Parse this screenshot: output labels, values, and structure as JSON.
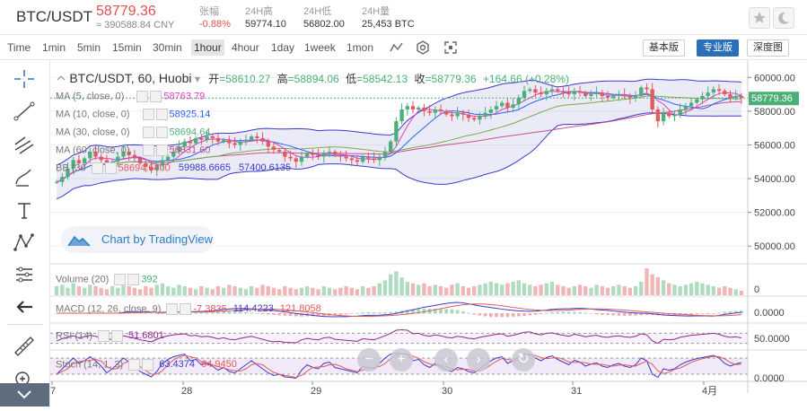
{
  "header": {
    "pair": "BTC/USDT",
    "price": "58779.36",
    "cny": "≈ 390588.84 CNY",
    "stats": [
      {
        "label": "张幅",
        "value": "-0.88%",
        "color": "#e24f4f"
      },
      {
        "label": "24H高",
        "value": "59774.10",
        "color": "#333"
      },
      {
        "label": "24H低",
        "value": "56802.00",
        "color": "#333"
      },
      {
        "label": "24H量",
        "value": "25,453 BTC",
        "color": "#333"
      }
    ]
  },
  "toolbar": {
    "timeframes": [
      "Time",
      "1min",
      "5min",
      "15min",
      "30min",
      "1hour",
      "4hour",
      "1day",
      "1week",
      "1mon"
    ],
    "active": "1hour",
    "views": [
      "基本版",
      "专业版",
      "深度图"
    ],
    "active_view": "专业版"
  },
  "legend": {
    "symbol": "BTC/USDT, 60, Huobi",
    "open_label": "开",
    "open": "=58610.27",
    "high_label": "高",
    "high": "=58894.06",
    "low_label": "低",
    "low": "=58542.13",
    "close_label": "收",
    "close": "=58779.36",
    "change": "+164.66 (+0.28%)",
    "ma5": "MA (5, close, 0)",
    "ma5v": "58763.79",
    "ma10": "MA (10, close, 0)",
    "ma10v": "58925.14",
    "ma30": "MA (30, close, 0)",
    "ma30v": "58694.64",
    "ma60": "MA (60, close, 0)",
    "ma60v": "56831.60",
    "bb": "BB (30",
    "bbv1": "58694.6400",
    "bbv2": "59988.6665",
    "bbv3": "57400.6135",
    "vol": "Volume (20)",
    "volv": "392",
    "macd": "MACD (12, 26, close, 9)",
    "macdv1": "-7.3835",
    "macdv2": "114.4223",
    "macdv3": "121.8058",
    "rsi": "RSI (14)",
    "rsiv": "51.6801",
    "stoch": "Stoch (14, 1, 3)",
    "stochv1": "63.4374",
    "stochv2": "64.9450"
  },
  "watermark": "Chart by TradingView",
  "colors": {
    "up": "#4caf78",
    "down": "#e25a5a",
    "ma5": "#e040c0",
    "ma10": "#2962ff",
    "ma30": "#8bc34a",
    "ma60": "#c8508a",
    "bb": "#3a3acd"
  },
  "chart_data": {
    "type": "candlestick",
    "price_axis_ticks": [
      "60000.00",
      "58000.00",
      "56000.00",
      "54000.00",
      "52000.00",
      "50000.00"
    ],
    "last_price_label": "58779.36",
    "ylim": [
      49000,
      60600
    ],
    "x_ticks": [
      "7",
      "28",
      "29",
      "30",
      "31",
      "4月"
    ],
    "volume_axis_tick": "0",
    "macd_axis_tick": "0.0000",
    "rsi_axis_tick": "50.0000",
    "stoch_axis_tick": "0.0000",
    "price_path": [
      53800,
      54100,
      54600,
      55100,
      54900,
      55200,
      55600,
      55300,
      55100,
      54800,
      55000,
      55300,
      55600,
      55400,
      55200,
      54900,
      54700,
      54500,
      54800,
      55100,
      55300,
      55600,
      55900,
      56200,
      56100,
      56400,
      56300,
      56500,
      56400,
      56200,
      56300,
      56100,
      56000,
      56200,
      56300,
      56500,
      56400,
      56200,
      55900,
      55700,
      55600,
      55300,
      55200,
      55000,
      55300,
      55500,
      55400,
      55300,
      55500,
      55600,
      55400,
      55300,
      55200,
      55100,
      55000,
      55300,
      55200,
      55100,
      55300,
      55600,
      56200,
      57400,
      58100,
      58300,
      58100,
      58200,
      58000,
      57900,
      58100,
      58000,
      57800,
      57700,
      57900,
      57800,
      57600,
      57500,
      57700,
      57900,
      58100,
      58300,
      58500,
      58200,
      58400,
      58800,
      59200,
      59300,
      59100,
      59000,
      59200,
      59300,
      59200,
      59100,
      59000,
      59200,
      59100,
      58900,
      59000,
      59100,
      58900,
      58800,
      58900,
      59000,
      58900,
      58800,
      58900,
      59400,
      59300,
      58100,
      57400,
      57900,
      57700,
      57800,
      58100,
      58300,
      58500,
      58700,
      58900,
      59100,
      59300,
      59200,
      59000,
      58800,
      58900,
      58779
    ],
    "volume": [
      6,
      7,
      5,
      8,
      6,
      5,
      7,
      6,
      5,
      4,
      6,
      5,
      7,
      6,
      5,
      4,
      6,
      5,
      7,
      8,
      6,
      5,
      7,
      6,
      5,
      4,
      6,
      5,
      4,
      6,
      5,
      7,
      6,
      5,
      4,
      6,
      5,
      7,
      6,
      5,
      4,
      6,
      5,
      4,
      5,
      6,
      5,
      4,
      6,
      5,
      4,
      5,
      6,
      5,
      4,
      6,
      5,
      6,
      8,
      10,
      14,
      16,
      12,
      9,
      8,
      7,
      8,
      6,
      7,
      6,
      5,
      7,
      8,
      6,
      5,
      6,
      7,
      8,
      9,
      8,
      7,
      8,
      9,
      10,
      8,
      7,
      6,
      7,
      8,
      9,
      7,
      6,
      5,
      6,
      7,
      6,
      5,
      7,
      6,
      5,
      6,
      7,
      6,
      5,
      6,
      9,
      18,
      14,
      12,
      10,
      8,
      7,
      6,
      7,
      8,
      9,
      8,
      7,
      6,
      5,
      6,
      5,
      4,
      3
    ],
    "rsi": [
      40,
      48,
      55,
      60,
      52,
      56,
      62,
      58,
      50,
      42,
      48,
      54,
      60,
      55,
      50,
      44,
      40,
      36,
      46,
      55,
      60,
      64,
      66,
      68,
      60,
      62,
      56,
      58,
      54,
      48,
      52,
      46,
      44,
      50,
      54,
      58,
      52,
      46,
      40,
      36,
      38,
      34,
      33,
      32,
      44,
      50,
      46,
      44,
      52,
      54,
      46,
      44,
      42,
      40,
      38,
      48,
      46,
      44,
      52,
      60,
      70,
      82,
      84,
      82,
      68,
      70,
      62,
      58,
      64,
      60,
      54,
      52,
      58,
      55,
      50,
      48,
      54,
      58,
      62,
      66,
      68,
      58,
      62,
      68,
      74,
      76,
      68,
      64,
      70,
      72,
      66,
      62,
      58,
      66,
      62,
      56,
      60,
      62,
      56,
      54,
      58,
      60,
      56,
      54,
      58,
      68,
      64,
      40,
      30,
      46,
      44,
      46,
      54,
      58,
      62,
      64,
      66,
      68,
      70,
      66,
      58,
      54,
      56,
      51.68
    ],
    "stoch": [
      20,
      40,
      60,
      80,
      60,
      70,
      85,
      70,
      50,
      25,
      40,
      60,
      80,
      65,
      50,
      30,
      20,
      10,
      30,
      60,
      75,
      85,
      90,
      95,
      70,
      75,
      55,
      60,
      50,
      35,
      45,
      30,
      25,
      40,
      55,
      70,
      55,
      40,
      25,
      15,
      20,
      10,
      8,
      5,
      35,
      55,
      45,
      40,
      60,
      65,
      45,
      40,
      35,
      30,
      25,
      50,
      45,
      40,
      60,
      80,
      95,
      98,
      96,
      94,
      70,
      75,
      55,
      45,
      60,
      50,
      35,
      30,
      45,
      40,
      30,
      25,
      40,
      55,
      70,
      80,
      85,
      60,
      70,
      85,
      94,
      95,
      80,
      70,
      82,
      88,
      75,
      65,
      55,
      72,
      65,
      50,
      58,
      62,
      50,
      45,
      55,
      60,
      50,
      45,
      55,
      80,
      70,
      20,
      8,
      40,
      35,
      40,
      55,
      65,
      72,
      78,
      82,
      86,
      90,
      80,
      60,
      50,
      58,
      63.44
    ]
  }
}
